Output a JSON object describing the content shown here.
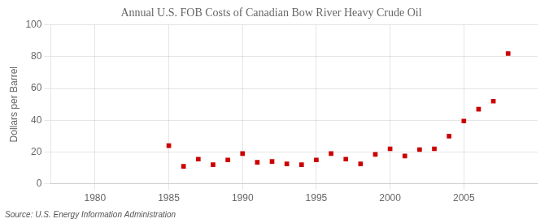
{
  "chart_data": {
    "type": "scatter",
    "title": "Annual U.S. FOB Costs of Canadian Bow River Heavy Crude Oil",
    "ylabel": "Dollars per Barrel",
    "source": "Source: U.S. Energy Information Administration",
    "x": [
      1985,
      1986,
      1987,
      1988,
      1989,
      1990,
      1991,
      1992,
      1993,
      1994,
      1995,
      1996,
      1997,
      1998,
      1999,
      2000,
      2001,
      2002,
      2003,
      2004,
      2005,
      2006,
      2007,
      2008
    ],
    "values": [
      24.0,
      11.0,
      15.5,
      12.0,
      15.0,
      19.0,
      13.5,
      14.0,
      12.5,
      12.0,
      15.0,
      19.0,
      15.5,
      12.5,
      18.5,
      22.0,
      17.5,
      21.5,
      22.0,
      30.0,
      39.5,
      47.0,
      52.0,
      82.0
    ],
    "color": "#cc0000",
    "marker": "square",
    "xlim": [
      1977,
      2010
    ],
    "ylim": [
      0,
      100
    ],
    "xticks": [
      1980,
      1985,
      1990,
      1995,
      2000,
      2005
    ],
    "yticks": [
      0,
      20,
      40,
      60,
      80,
      100
    ],
    "grid": true
  }
}
